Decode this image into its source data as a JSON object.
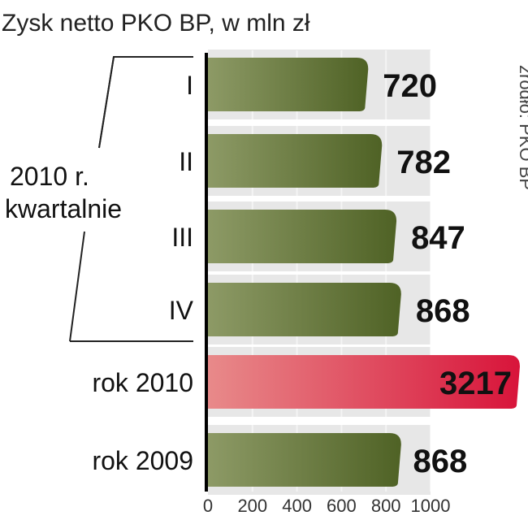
{
  "title": "Zysk netto PKO BP, w mln zł",
  "source": "źródło: PKO BP",
  "group_label": [
    "2010 r.",
    "kwartalnie"
  ],
  "colors": {
    "bar": "#6a7a3e",
    "bar_highlight": "#e0344e",
    "band": "#e7e7e7"
  },
  "chart_data": {
    "type": "bar",
    "orientation": "horizontal",
    "title": "Zysk netto PKO BP, w mln zł",
    "categories": [
      "I",
      "II",
      "III",
      "IV",
      "rok 2010",
      "rok 2009"
    ],
    "values": [
      720,
      782,
      847,
      868,
      3217,
      868
    ],
    "value_labels": [
      "720",
      "782",
      "847",
      "868",
      "3217",
      "868"
    ],
    "highlight_index": 4,
    "x_ticks": [
      "0",
      "200",
      "400",
      "600",
      "800",
      "1000"
    ],
    "x_tick_values": [
      0,
      200,
      400,
      600,
      800,
      1000
    ],
    "xlim": [
      0,
      1000
    ],
    "grid": true,
    "xlabel": "",
    "ylabel": ""
  }
}
